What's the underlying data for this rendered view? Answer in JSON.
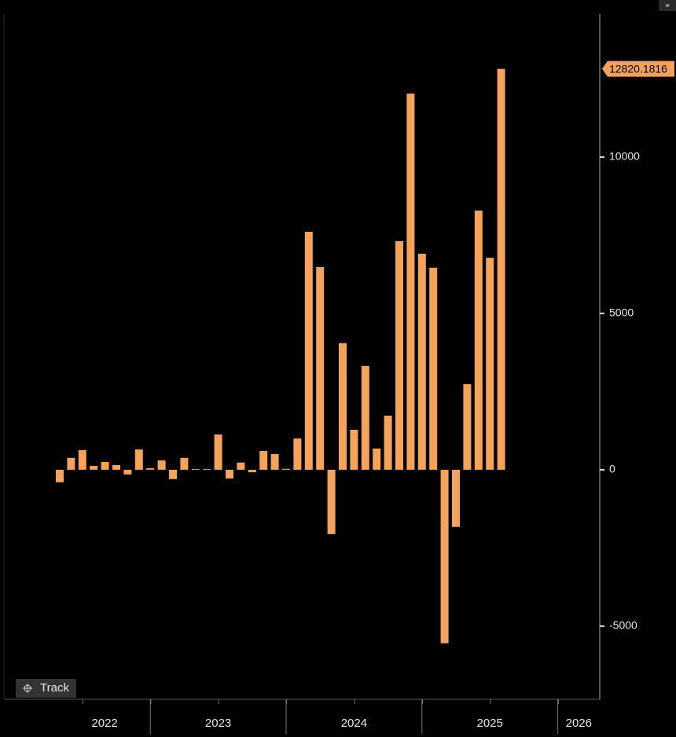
{
  "chart_data": {
    "type": "bar",
    "values": [
      -400,
      380,
      630,
      125,
      250,
      150,
      -150,
      650,
      50,
      300,
      -300,
      380,
      25,
      25,
      1130,
      -280,
      230,
      -80,
      600,
      500,
      30,
      1000,
      7610,
      6480,
      -2060,
      4050,
      1280,
      3320,
      680,
      1730,
      7310,
      12030,
      6910,
      6460,
      -5550,
      -1830,
      2740,
      8290,
      6780,
      12820.1816
    ],
    "color": "#f5a35a",
    "ylim": [
      -7340,
      14520
    ],
    "yticks": [
      -5000,
      0,
      5000,
      10000
    ],
    "x_axis_labels": [
      "2022",
      "2023",
      "2024",
      "2025",
      "2026"
    ],
    "last_value_tag": true
  },
  "toolbar": {
    "button": "Track"
  }
}
